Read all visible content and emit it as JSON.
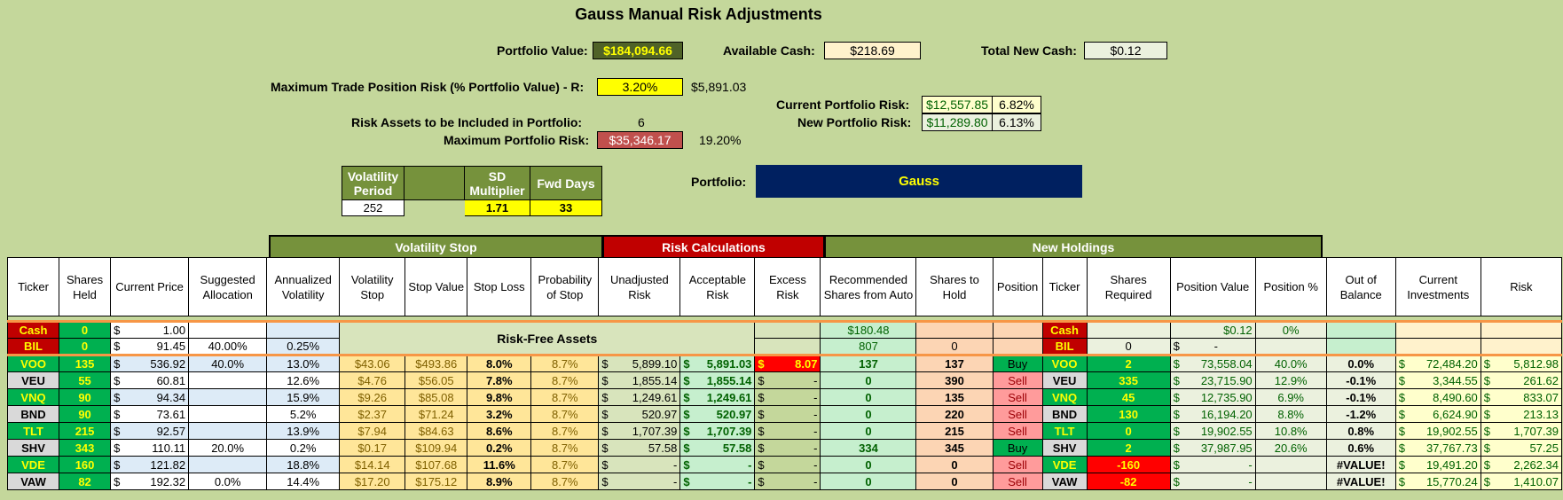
{
  "title": "Gauss Manual Risk Adjustments",
  "summary": {
    "portfolio_value_label": "Portfolio Value:",
    "portfolio_value": "$184,094.66",
    "available_cash_label": "Available Cash:",
    "available_cash": "$218.69",
    "total_new_cash_label": "Total New Cash:",
    "total_new_cash": "$0.12",
    "max_trade_risk_label": "Maximum Trade Position Risk (% Portfolio Value) - R:",
    "max_trade_risk_pct": "3.20%",
    "max_trade_risk_amt": "$5,891.03",
    "current_risk_label": "Current Portfolio Risk:",
    "current_risk_amt": "$12,557.85",
    "current_risk_pct": "6.82%",
    "new_risk_label": "New Portfolio Risk:",
    "new_risk_amt": "$11,289.80",
    "new_risk_pct": "6.13%",
    "risk_assets_label": "Risk Assets to be Included in Portfolio:",
    "risk_assets": "6",
    "max_portfolio_risk_label": "Maximum Portfolio Risk:",
    "max_portfolio_risk": "$35,346.17",
    "max_portfolio_risk_pct": "19.20%"
  },
  "params": {
    "h1": "Volatility Period",
    "h2": "",
    "h3": "SD Multiplier",
    "h4": "Fwd Days",
    "v1": "252",
    "v2": "",
    "v3": "1.71",
    "v4": "33"
  },
  "portfolio": {
    "label": "Portfolio:",
    "name": "Gauss"
  },
  "groups": {
    "volatility_stop": "Volatility Stop",
    "risk_calculations": "Risk Calculations",
    "new_holdings": "New Holdings"
  },
  "headers": [
    "Ticker",
    "Shares Held",
    "Current Price",
    "Suggested Allocation",
    "Annualized Volatility",
    "Volatility Stop",
    "Stop Value",
    "Stop Loss",
    "Probability of Stop",
    "Unadjusted Risk",
    "Acceptable Risk",
    "Excess Risk",
    "Recommended Shares from Auto",
    "Shares to Hold",
    "Position",
    "Ticker",
    "Shares Required",
    "Position Value",
    "Position %",
    "Out of Balance",
    "Current Investments",
    "Risk"
  ],
  "risk_free_label": "Risk-Free Assets",
  "cash_row": {
    "ticker": "Cash",
    "shares": "0",
    "price": "1.00",
    "rec": "$180.48",
    "ticker2": "Cash",
    "pos_value": "$0.12",
    "pos_pct": "0%"
  },
  "bil_row": {
    "ticker": "BIL",
    "shares": "0",
    "price": "91.45",
    "alloc": "40.00%",
    "vol": "0.25%",
    "rec": "807",
    "hold": "0",
    "ticker2": "BIL",
    "req": "0",
    "pos_value": "-"
  },
  "rows": [
    {
      "ticker": "VOO",
      "shares": "135",
      "price": "536.92",
      "alloc": "40.0%",
      "vol": "13.0%",
      "vstop": "$43.06",
      "sval": "$493.86",
      "sloss": "8.0%",
      "prob": "8.7%",
      "unadj": "5,899.10",
      "accept": "5,891.03",
      "excess": "8.07",
      "rec": "137",
      "hold": "137",
      "pos": "Buy",
      "ticker2": "VOO",
      "req": "2",
      "pval": "73,558.04",
      "ppct": "40.0%",
      "oob": "0.0%",
      "cur": "72,484.20",
      "risk": "5,812.98"
    },
    {
      "ticker": "VEU",
      "shares": "55",
      "price": "60.81",
      "alloc": "",
      "vol": "12.6%",
      "vstop": "$4.76",
      "sval": "$56.05",
      "sloss": "7.8%",
      "prob": "8.7%",
      "unadj": "1,855.14",
      "accept": "1,855.14",
      "excess": "-",
      "rec": "0",
      "hold": "390",
      "pos": "Sell",
      "ticker2": "VEU",
      "req": "335",
      "pval": "23,715.90",
      "ppct": "12.9%",
      "oob": "-0.1%",
      "cur": "3,344.55",
      "risk": "261.62"
    },
    {
      "ticker": "VNQ",
      "shares": "90",
      "price": "94.34",
      "alloc": "",
      "vol": "15.9%",
      "vstop": "$9.26",
      "sval": "$85.08",
      "sloss": "9.8%",
      "prob": "8.7%",
      "unadj": "1,249.61",
      "accept": "1,249.61",
      "excess": "-",
      "rec": "0",
      "hold": "135",
      "pos": "Sell",
      "ticker2": "VNQ",
      "req": "45",
      "pval": "12,735.90",
      "ppct": "6.9%",
      "oob": "-0.1%",
      "cur": "8,490.60",
      "risk": "833.07"
    },
    {
      "ticker": "BND",
      "shares": "90",
      "price": "73.61",
      "alloc": "",
      "vol": "5.2%",
      "vstop": "$2.37",
      "sval": "$71.24",
      "sloss": "3.2%",
      "prob": "8.7%",
      "unadj": "520.97",
      "accept": "520.97",
      "excess": "-",
      "rec": "0",
      "hold": "220",
      "pos": "Sell",
      "ticker2": "BND",
      "req": "130",
      "pval": "16,194.20",
      "ppct": "8.8%",
      "oob": "-1.2%",
      "cur": "6,624.90",
      "risk": "213.13"
    },
    {
      "ticker": "TLT",
      "shares": "215",
      "price": "92.57",
      "alloc": "",
      "vol": "13.9%",
      "vstop": "$7.94",
      "sval": "$84.63",
      "sloss": "8.6%",
      "prob": "8.7%",
      "unadj": "1,707.39",
      "accept": "1,707.39",
      "excess": "-",
      "rec": "0",
      "hold": "215",
      "pos": "Sell",
      "ticker2": "TLT",
      "req": "0",
      "pval": "19,902.55",
      "ppct": "10.8%",
      "oob": "0.8%",
      "cur": "19,902.55",
      "risk": "1,707.39"
    },
    {
      "ticker": "SHV",
      "shares": "343",
      "price": "110.11",
      "alloc": "20.0%",
      "vol": "0.2%",
      "vstop": "$0.17",
      "sval": "$109.94",
      "sloss": "0.2%",
      "prob": "8.7%",
      "unadj": "57.58",
      "accept": "57.58",
      "excess": "-",
      "rec": "334",
      "hold": "345",
      "pos": "Buy",
      "ticker2": "SHV",
      "req": "2",
      "pval": "37,987.95",
      "ppct": "20.6%",
      "oob": "0.6%",
      "cur": "37,767.73",
      "risk": "57.25"
    },
    {
      "ticker": "VDE",
      "shares": "160",
      "price": "121.82",
      "alloc": "",
      "vol": "18.8%",
      "vstop": "$14.14",
      "sval": "$107.68",
      "sloss": "11.6%",
      "prob": "8.7%",
      "unadj": "-",
      "accept": "-",
      "excess": "-",
      "rec": "0",
      "hold": "0",
      "pos": "Sell",
      "ticker2": "VDE",
      "req": "-160",
      "pval": "-",
      "ppct": "",
      "oob": "#VALUE!",
      "cur": "19,491.20",
      "risk": "2,262.34"
    },
    {
      "ticker": "VAW",
      "shares": "82",
      "price": "192.32",
      "alloc": "0.0%",
      "vol": "14.4%",
      "vstop": "$17.20",
      "sval": "$175.12",
      "sloss": "8.9%",
      "prob": "8.7%",
      "unadj": "-",
      "accept": "-",
      "excess": "-",
      "rec": "0",
      "hold": "0",
      "pos": "Sell",
      "ticker2": "VAW",
      "req": "-82",
      "pval": "-",
      "ppct": "",
      "oob": "#VALUE!",
      "cur": "15,770.24",
      "risk": "1,410.07"
    }
  ],
  "currency_symbol": "$"
}
